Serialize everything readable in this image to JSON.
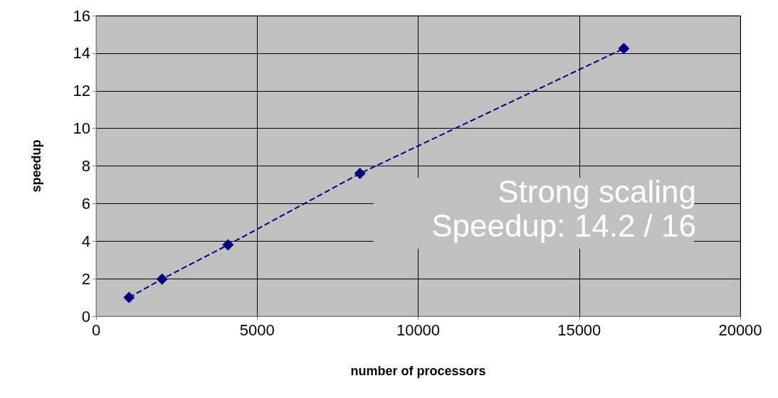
{
  "chart_data": {
    "type": "line",
    "xlabel": "number of processors",
    "ylabel": "speedup",
    "annotations": [
      "Strong scaling",
      "Speedup: 14.2 / 16"
    ],
    "x": [
      1024,
      2048,
      4096,
      8192,
      16384
    ],
    "series": [
      {
        "color": "#000080",
        "values": [
          1,
          1.98,
          3.8,
          7.6,
          14.25
        ]
      }
    ],
    "xlim": [
      0,
      20000
    ],
    "xticks": [
      0,
      5000,
      10000,
      15000,
      20000
    ],
    "ylim": [
      0,
      16
    ],
    "yticks": [
      0,
      2,
      4,
      6,
      8,
      10,
      12,
      14,
      16
    ],
    "grid": true,
    "marker": "diamond",
    "line_style": "dashed"
  }
}
